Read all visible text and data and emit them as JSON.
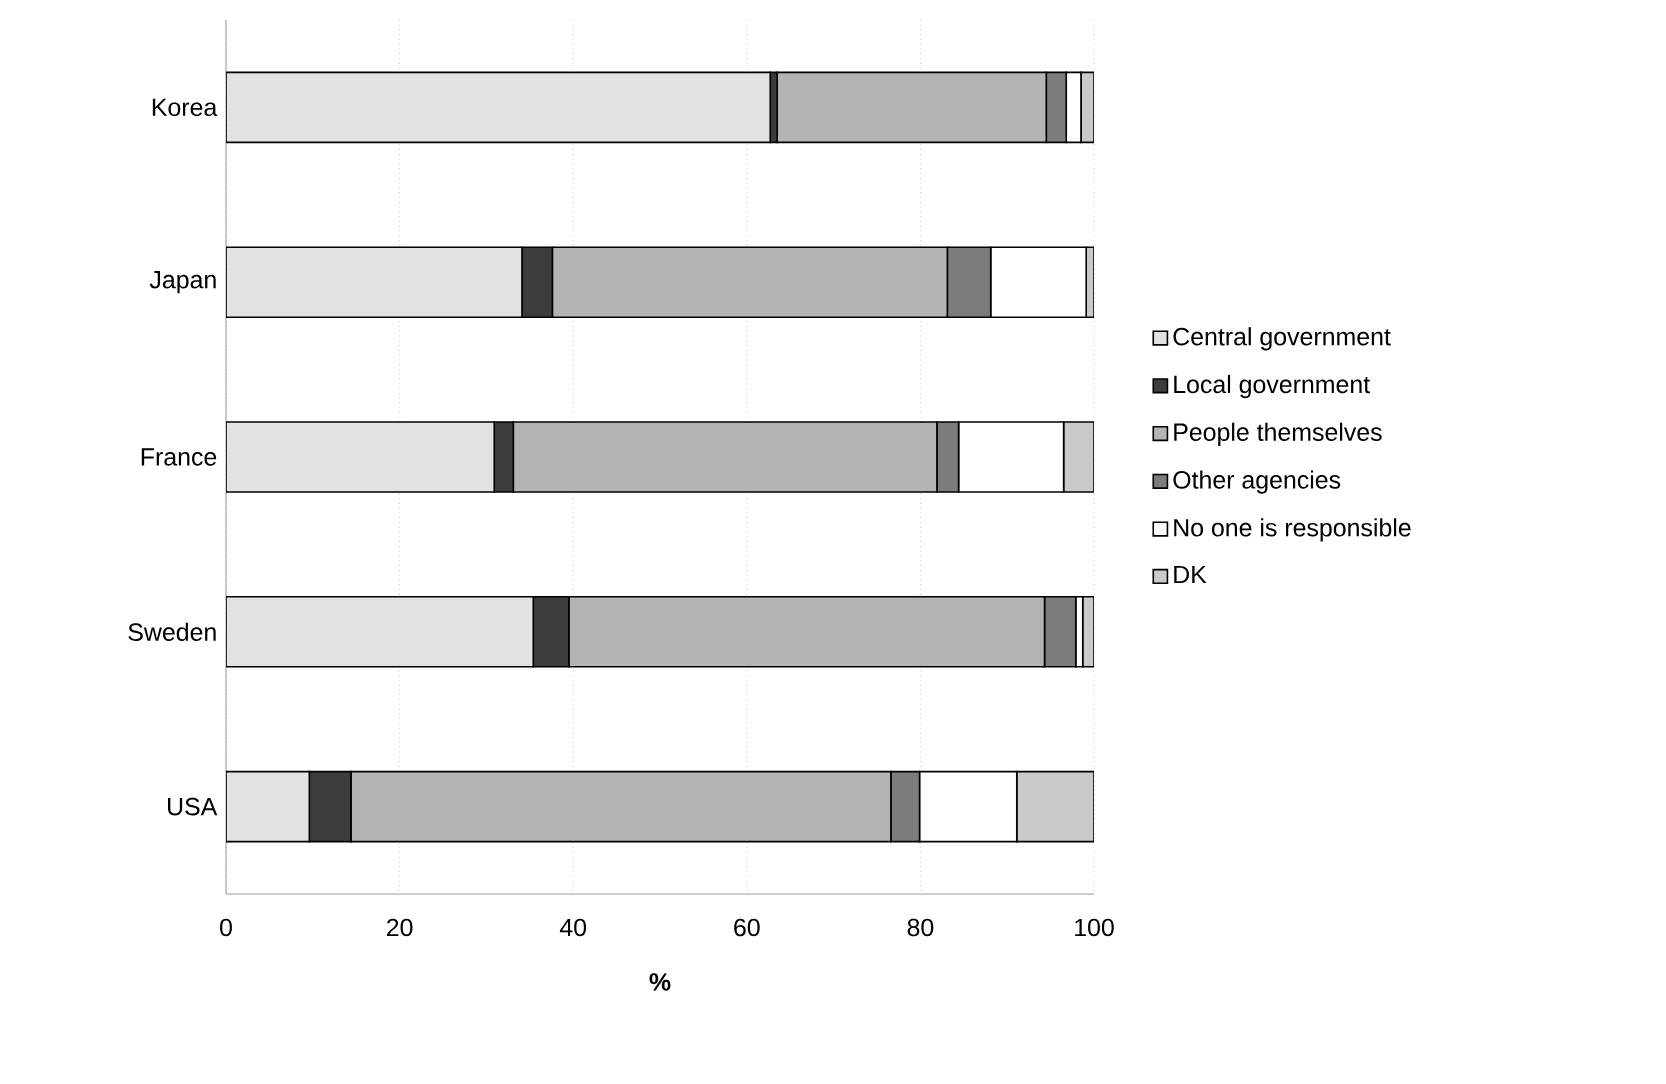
{
  "chart_data": {
    "type": "bar",
    "orientation": "horizontal",
    "stacked": true,
    "xlabel": "%",
    "categories": [
      "Korea",
      "Japan",
      "France",
      "Sweden",
      "USA"
    ],
    "series": [
      {
        "name": "Central government",
        "color": "#e2e2e2",
        "values": [
          62.7,
          34.1,
          30.9,
          35.4,
          9.6
        ]
      },
      {
        "name": "Local government",
        "color": "#3c3c3c",
        "values": [
          0.8,
          3.5,
          2.2,
          4.1,
          4.8
        ]
      },
      {
        "name": "People themselves",
        "color": "#b4b4b4",
        "values": [
          31.0,
          45.5,
          48.8,
          54.8,
          62.2
        ]
      },
      {
        "name": "Other agencies",
        "color": "#7c7c7c",
        "values": [
          2.3,
          5.0,
          2.5,
          3.6,
          3.3
        ]
      },
      {
        "name": "No one is responsible",
        "color": "#ffffff",
        "values": [
          1.7,
          11.0,
          12.1,
          0.8,
          11.2
        ]
      },
      {
        "name": "DK",
        "color": "#cacaca",
        "values": [
          1.5,
          0.9,
          3.5,
          1.3,
          8.9
        ]
      }
    ],
    "xlim": [
      0,
      100
    ],
    "xticks": [
      0,
      20,
      40,
      60,
      80,
      100
    ],
    "grid": "x",
    "legend": "right"
  }
}
